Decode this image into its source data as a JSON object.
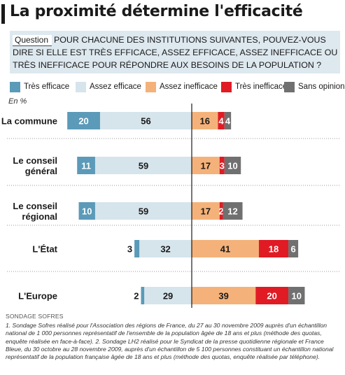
{
  "title": "La proximité détermine l'efficacité",
  "question": {
    "label": "Question",
    "text": "POUR CHACUNE DES INSTITUTIONS SUIVANTES, POUVEZ-VOUS DIRE SI ELLE EST TRÈS EFFICACE, ASSEZ EFFICACE, ASSEZ INEFFICACE OU TRÈS INEFFICACE POUR RÉPONDRE AUX BESOINS DE LA POPULATION ?"
  },
  "legend": [
    {
      "label": "Très efficace",
      "color": "#5b9ab8"
    },
    {
      "label": "Assez efficace",
      "color": "#d6e4ec"
    },
    {
      "label": "Assez inefficace",
      "color": "#f4b27a"
    },
    {
      "label": "Très inefficace",
      "color": "#e01b24"
    },
    {
      "label": "Sans opinion",
      "color": "#707070"
    }
  ],
  "unit": "En %",
  "chart_data": {
    "type": "bar",
    "orientation": "horizontal-diverging",
    "categories": [
      "La commune",
      "Le conseil général",
      "Le conseil régional",
      "L'État",
      "L'Europe"
    ],
    "series": [
      {
        "name": "Très efficace",
        "side": "left",
        "values": [
          20,
          11,
          10,
          3,
          2
        ]
      },
      {
        "name": "Assez efficace",
        "side": "left",
        "values": [
          56,
          59,
          59,
          32,
          29
        ]
      },
      {
        "name": "Assez inefficace",
        "side": "right",
        "values": [
          16,
          17,
          17,
          41,
          39
        ]
      },
      {
        "name": "Très inefficace",
        "side": "right",
        "values": [
          4,
          3,
          2,
          18,
          20
        ]
      },
      {
        "name": "Sans opinion",
        "side": "right",
        "values": [
          4,
          10,
          12,
          6,
          10
        ]
      }
    ]
  },
  "source": "SONDAGE SOFRES",
  "footnote": "1. Sondage Sofres réalisé pour l'Association des régions de France, du 27 au 30 novembre 2009 auprès d'un échantillon national de 1 000 personnes représentatif de l'ensemble de la population âgée de 18 ans et plus (méthode des quotas, enquête réalisée en face-à-face). 2. Sondage LH2 réalisé pour le Syndicat de la presse quotidienne régionale et France Bleue, du 30 octobre au 28 novembre 2009, auprès d'un échantillon de 5 100 personnes constituant un échantillon national représentatif de la population française âgée de 18 ans et plus (méthode des quotas, enquête réalisée par téléphone)."
}
